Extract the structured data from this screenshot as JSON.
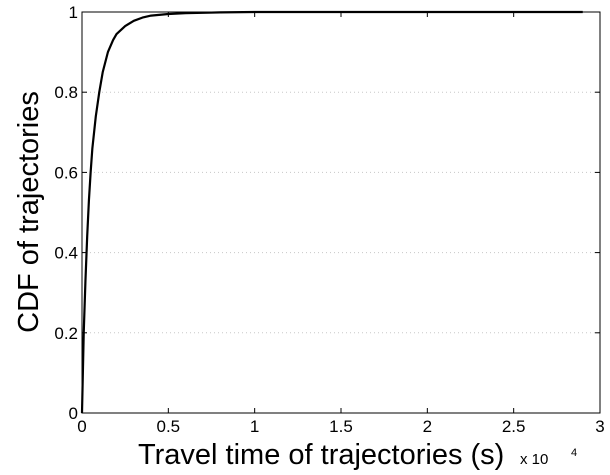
{
  "chart_data": {
    "type": "line",
    "title": "",
    "xlabel": "Travel time of trajectories (s)",
    "ylabel": "CDF of trajectories",
    "x_multiplier_label": "x 10",
    "x_multiplier_exponent": "4",
    "xlim": [
      0,
      3
    ],
    "ylim": [
      0,
      1
    ],
    "x_ticks": [
      0,
      0.5,
      1,
      1.5,
      2,
      2.5,
      3
    ],
    "x_tick_labels": [
      "0",
      "0.5",
      "1",
      "1.5",
      "2",
      "2.5",
      "3"
    ],
    "y_ticks": [
      0,
      0.2,
      0.4,
      0.6,
      0.8,
      1
    ],
    "y_tick_labels": [
      "0",
      "0.2",
      "0.4",
      "0.6",
      "0.8",
      "1"
    ],
    "grid": "horizontal dotted",
    "series": [
      {
        "color": "#000000",
        "x": [
          0,
          0.01,
          0.02,
          0.03,
          0.04,
          0.05,
          0.06,
          0.08,
          0.1,
          0.12,
          0.15,
          0.18,
          0.2,
          0.25,
          0.3,
          0.35,
          0.4,
          0.5,
          0.6,
          0.7,
          0.8,
          1.0,
          1.5,
          2.0,
          2.5,
          2.9
        ],
        "y": [
          0.0,
          0.2,
          0.33,
          0.44,
          0.53,
          0.6,
          0.66,
          0.74,
          0.8,
          0.85,
          0.9,
          0.93,
          0.945,
          0.965,
          0.978,
          0.986,
          0.991,
          0.995,
          0.997,
          0.998,
          0.999,
          1.0,
          1.0,
          1.0,
          1.0,
          1.0
        ]
      }
    ]
  }
}
